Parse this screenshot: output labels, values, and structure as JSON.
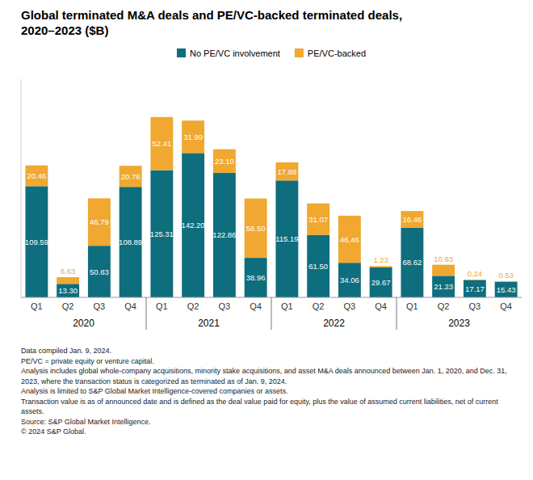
{
  "chart_data": {
    "type": "bar",
    "stacked": true,
    "title": "Global terminated M&A deals and PE/VC-backed terminated deals,\n2020–2023 ($B)",
    "categories": [
      "Q1",
      "Q2",
      "Q3",
      "Q4",
      "Q1",
      "Q2",
      "Q3",
      "Q4",
      "Q1",
      "Q2",
      "Q3",
      "Q4",
      "Q1",
      "Q2",
      "Q3",
      "Q4"
    ],
    "groups": [
      "2020",
      "2021",
      "2022",
      "2023"
    ],
    "series": [
      {
        "name": "No PE/VC involvement",
        "color": "#0e6e7e",
        "values": [
          109.59,
          13.3,
          50.83,
          108.89,
          125.31,
          142.2,
          122.86,
          38.96,
          115.19,
          61.5,
          34.06,
          29.67,
          68.62,
          21.23,
          17.17,
          15.43
        ],
        "value_labels": [
          "109.59",
          "13.30",
          "50.83",
          "108.89",
          "125.31",
          "142.20",
          "122.86",
          "38.96",
          "115.19",
          "61.50",
          "34.06",
          "29.67",
          "68.62",
          "21.23",
          "17.17",
          "15.43"
        ]
      },
      {
        "name": "PE/VC-backed",
        "color": "#f0a830",
        "values": [
          20.46,
          6.63,
          46.79,
          20.76,
          52.41,
          31.99,
          23.1,
          58.5,
          17.88,
          31.07,
          46.46,
          1.23,
          16.46,
          10.93,
          0.24,
          0.53
        ],
        "value_labels": [
          "20.46",
          "6.63",
          "46.79",
          "20.76",
          "52.41",
          "31.99",
          "23.10",
          "58.50",
          "17.88",
          "31.07",
          "46.46",
          "1.23",
          "16.46",
          "10.93",
          "0.24",
          "0.53"
        ]
      }
    ],
    "ylim": [
      0,
      215
    ],
    "grid": false,
    "legend": "top",
    "data_labels": true,
    "tick_labels": "x",
    "notes": [
      "Data compiled Jan. 9, 2024.",
      "PE/VC = private equity or venture capital.",
      "Analysis includes global whole-company acquisitions, minority stake acquisitions, and asset M&A deals announced between Jan. 1, 2020, and Dec. 31, 2023, where the transaction status is categorized as terminated as of Jan. 9, 2024.",
      "Analysis is limited to S&P Global Market Intelligence-covered companies or assets.",
      "Transaction value is as of announced date and is defined as the deal value paid for equity, plus the value of assumed current liabilities, net of current assets.",
      "Source: S&P Global Market Intelligence.",
      "© 2024 S&P Global."
    ]
  }
}
